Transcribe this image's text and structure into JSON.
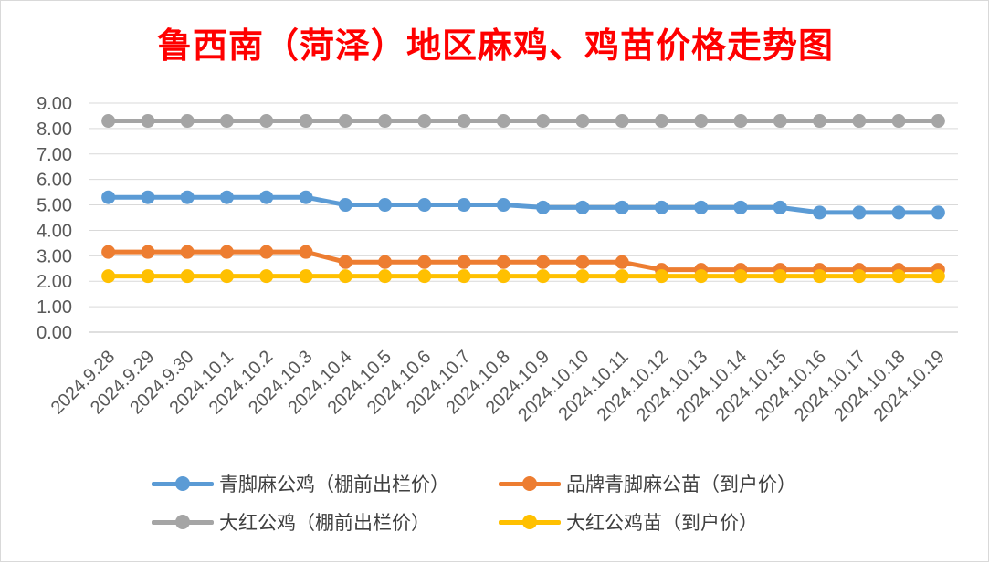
{
  "chart_data": {
    "type": "line",
    "title": "鲁西南（菏泽）地区麻鸡、鸡苗价格走势图",
    "xlabel": "",
    "ylabel": "",
    "ylim": [
      0,
      9
    ],
    "ytick_step": 1,
    "ytick_labels": [
      "0.00",
      "1.00",
      "2.00",
      "3.00",
      "4.00",
      "5.00",
      "6.00",
      "7.00",
      "8.00",
      "9.00"
    ],
    "grid": true,
    "legend_position": "bottom",
    "categories": [
      "2024.9.28",
      "2024.9.29",
      "2024.9.30",
      "2024.10.1",
      "2024.10.2",
      "2024.10.3",
      "2024.10.4",
      "2024.10.5",
      "2024.10.6",
      "2024.10.7",
      "2024.10.8",
      "2024.10.9",
      "2024.10.10",
      "2024.10.11",
      "2024.10.12",
      "2024.10.13",
      "2024.10.14",
      "2024.10.15",
      "2024.10.16",
      "2024.10.17",
      "2024.10.18",
      "2024.10.19"
    ],
    "series": [
      {
        "name": "青脚麻公鸡（棚前出栏价）",
        "color": "#5b9bd5",
        "values": [
          5.3,
          5.3,
          5.3,
          5.3,
          5.3,
          5.3,
          5.0,
          5.0,
          5.0,
          5.0,
          5.0,
          4.9,
          4.9,
          4.9,
          4.9,
          4.9,
          4.9,
          4.9,
          4.7,
          4.7,
          4.7,
          4.7
        ]
      },
      {
        "name": "品牌青脚麻公苗（到户价）",
        "color": "#ed7d31",
        "values": [
          3.15,
          3.15,
          3.15,
          3.15,
          3.15,
          3.15,
          2.75,
          2.75,
          2.75,
          2.75,
          2.75,
          2.75,
          2.75,
          2.75,
          2.45,
          2.45,
          2.45,
          2.45,
          2.45,
          2.45,
          2.45,
          2.45
        ]
      },
      {
        "name": "大红公鸡（棚前出栏价）",
        "color": "#a5a5a5",
        "values": [
          8.3,
          8.3,
          8.3,
          8.3,
          8.3,
          8.3,
          8.3,
          8.3,
          8.3,
          8.3,
          8.3,
          8.3,
          8.3,
          8.3,
          8.3,
          8.3,
          8.3,
          8.3,
          8.3,
          8.3,
          8.3,
          8.3
        ]
      },
      {
        "name": "大红公鸡苗（到户价）",
        "color": "#ffc000",
        "values": [
          2.2,
          2.2,
          2.2,
          2.2,
          2.2,
          2.2,
          2.2,
          2.2,
          2.2,
          2.2,
          2.2,
          2.2,
          2.2,
          2.2,
          2.2,
          2.2,
          2.2,
          2.2,
          2.2,
          2.2,
          2.2,
          2.2
        ]
      }
    ]
  },
  "legend": {
    "items": [
      {
        "label": "青脚麻公鸡（棚前出栏价）",
        "color": "#5b9bd5"
      },
      {
        "label": "品牌青脚麻公苗（到户价）",
        "color": "#ed7d31"
      },
      {
        "label": "大红公鸡（棚前出栏价）",
        "color": "#a5a5a5"
      },
      {
        "label": "大红公鸡苗（到户价）",
        "color": "#ffc000"
      }
    ]
  }
}
